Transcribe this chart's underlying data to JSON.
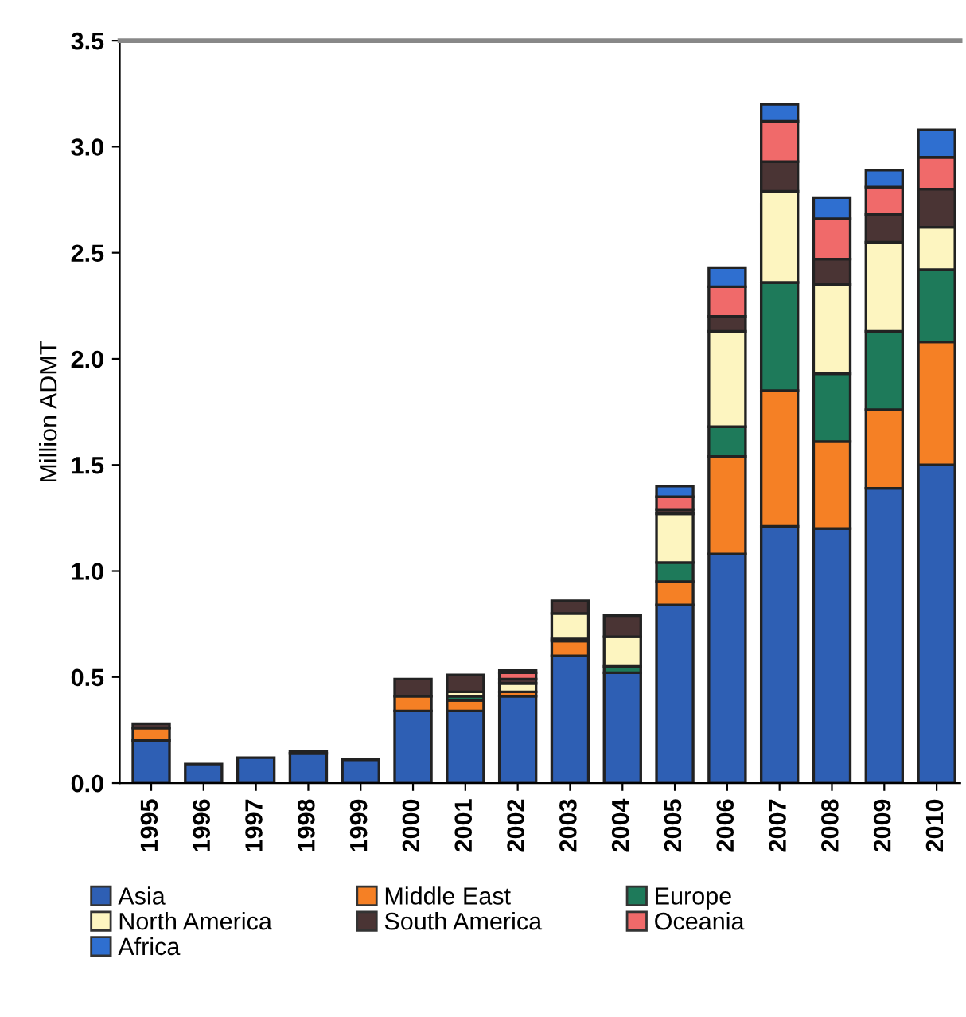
{
  "chart_data": {
    "type": "bar",
    "stacked": true,
    "ylabel": "Million ADMT",
    "categories": [
      "1995",
      "1996",
      "1997",
      "1998",
      "1999",
      "2000",
      "2001",
      "2002",
      "2003",
      "2004",
      "2005",
      "2006",
      "2007",
      "2008",
      "2009",
      "2010"
    ],
    "series": [
      {
        "name": "Asia",
        "color": "#2e5fb4",
        "values": [
          0.2,
          0.09,
          0.12,
          0.14,
          0.11,
          0.34,
          0.34,
          0.41,
          0.6,
          0.52,
          0.84,
          1.08,
          1.21,
          1.2,
          1.39,
          1.5
        ]
      },
      {
        "name": "Middle East",
        "color": "#f58025",
        "values": [
          0.06,
          0,
          0,
          0,
          0,
          0.07,
          0.05,
          0.02,
          0.07,
          0,
          0.11,
          0.46,
          0.64,
          0.41,
          0.37,
          0.58
        ]
      },
      {
        "name": "Europe",
        "color": "#1e7a5a",
        "values": [
          0,
          0,
          0,
          0,
          0,
          null,
          0.02,
          null,
          0.01,
          0.03,
          0.09,
          0.14,
          0.51,
          0.32,
          0.37,
          0.34
        ]
      },
      {
        "name": "North America",
        "color": "#fdf5c0",
        "values": [
          0,
          0,
          0,
          0,
          0,
          null,
          0.02,
          0.04,
          0.12,
          0.14,
          0.23,
          0.45,
          0.43,
          0.42,
          0.42,
          0.2
        ]
      },
      {
        "name": "South America",
        "color": "#4a3434",
        "values": [
          0.02,
          0,
          0,
          0.01,
          0,
          0.08,
          0.08,
          0.02,
          0.06,
          0.1,
          0.02,
          0.07,
          0.14,
          0.12,
          0.13,
          0.18
        ]
      },
      {
        "name": "Oceania",
        "color": "#f06a6a",
        "values": [
          0,
          0,
          0,
          0,
          0,
          0,
          0,
          0.03,
          0,
          0,
          0.06,
          0.14,
          0.19,
          0.19,
          0.13,
          0.15
        ]
      },
      {
        "name": "Africa",
        "color": "#2f6fd0",
        "values": [
          0,
          0,
          0,
          0,
          0,
          0,
          0,
          0.01,
          0,
          0,
          0.05,
          0.09,
          0.08,
          0.1,
          0.08,
          0.13
        ]
      }
    ],
    "ylim": [
      0,
      3.5
    ],
    "yticks": [
      {
        "value": 0,
        "label": "0.0"
      },
      {
        "value": 0.5,
        "label": "0.5"
      },
      {
        "value": 1,
        "label": "1.0"
      },
      {
        "value": 1.5,
        "label": "1.5"
      },
      {
        "value": 2,
        "label": "2.0"
      },
      {
        "value": 2.5,
        "label": "2.5"
      },
      {
        "value": 3,
        "label": "3.0"
      },
      {
        "value": 3.5,
        "label": "3.5"
      }
    ],
    "grid": false,
    "legend": "bottom"
  }
}
